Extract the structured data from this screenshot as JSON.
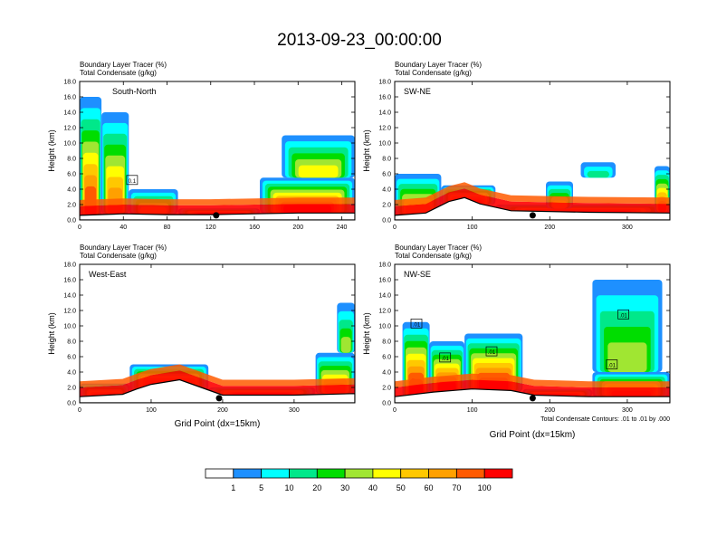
{
  "page_title": "2013-09-23_00:00:00",
  "chart_data": [
    {
      "type": "heatmap",
      "panel_label": "South-North",
      "title_lines": [
        "Boundary Layer Tracer   (%)",
        "Total Condensate   (g/kg)"
      ],
      "ylabel": "Height (km)",
      "xlabel": "",
      "footnote": "",
      "xlim": [
        0,
        252
      ],
      "ylim": [
        0,
        18
      ],
      "xticks": [
        0,
        40,
        80,
        120,
        160,
        200,
        240
      ],
      "yticks": [
        0.0,
        2.0,
        4.0,
        6.0,
        8.0,
        10.0,
        12.0,
        14.0,
        16.0,
        18.0
      ],
      "terrain": [
        [
          0,
          0.6
        ],
        [
          40,
          0.8
        ],
        [
          80,
          0.7
        ],
        [
          120,
          0.7
        ],
        [
          160,
          0.8
        ],
        [
          200,
          0.9
        ],
        [
          252,
          0.9
        ]
      ],
      "location_marker_x": 125,
      "tracer_regions": [
        {
          "x": [
            0,
            20
          ],
          "bottom": 0.6,
          "top": 16.0,
          "peak": 70
        },
        {
          "x": [
            20,
            45
          ],
          "bottom": 0.8,
          "top": 14.0,
          "peak": 60
        },
        {
          "x": [
            45,
            90
          ],
          "bottom": 0.8,
          "top": 4.0,
          "peak": 40
        },
        {
          "x": [
            90,
            165
          ],
          "bottom": 0.7,
          "top": 1.5,
          "peak": 100
        },
        {
          "x": [
            165,
            252
          ],
          "bottom": 0.9,
          "top": 5.5,
          "peak": 100
        },
        {
          "x": [
            185,
            252
          ],
          "bottom": 5.5,
          "top": 11.0,
          "peak": 40
        }
      ],
      "condensate_contour_labels": [
        {
          "x": 48,
          "y": 5.2,
          "text": "0.1"
        }
      ]
    },
    {
      "type": "heatmap",
      "panel_label": "SW-NE",
      "title_lines": [
        "Boundary Layer Tracer   (%)",
        "Total Condensate   (g/kg)"
      ],
      "ylabel": "Height (km)",
      "xlabel": "",
      "footnote": "",
      "xlim": [
        0,
        355
      ],
      "ylim": [
        0,
        18
      ],
      "xticks": [
        0,
        100,
        200,
        300
      ],
      "yticks": [
        0.0,
        2.0,
        4.0,
        6.0,
        8.0,
        10.0,
        12.0,
        14.0,
        16.0,
        18.0
      ],
      "terrain": [
        [
          0,
          0.6
        ],
        [
          40,
          0.9
        ],
        [
          70,
          2.4
        ],
        [
          90,
          2.9
        ],
        [
          110,
          2.1
        ],
        [
          150,
          1.2
        ],
        [
          250,
          1.0
        ],
        [
          355,
          0.9
        ]
      ],
      "location_marker_x": 178,
      "tracer_regions": [
        {
          "x": [
            0,
            60
          ],
          "bottom": 0.6,
          "top": 6.0,
          "peak": 50
        },
        {
          "x": [
            60,
            130
          ],
          "bottom": 2.0,
          "top": 4.5,
          "peak": 70
        },
        {
          "x": [
            130,
            355
          ],
          "bottom": 0.9,
          "top": 2.0,
          "peak": 100
        },
        {
          "x": [
            195,
            230
          ],
          "bottom": 1.5,
          "top": 5.0,
          "peak": 40
        },
        {
          "x": [
            335,
            355
          ],
          "bottom": 1.0,
          "top": 7.0,
          "peak": 70
        },
        {
          "x": [
            240,
            285
          ],
          "bottom": 5.5,
          "top": 7.5,
          "peak": 10
        }
      ],
      "condensate_contour_labels": []
    },
    {
      "type": "heatmap",
      "panel_label": "West-East",
      "title_lines": [
        "Boundary Layer Tracer   (%)",
        "Total Condensate   (g/kg)"
      ],
      "ylabel": "Height (km)",
      "xlabel": "Grid Point (dx=15km)",
      "footnote": "",
      "xlim": [
        0,
        385
      ],
      "ylim": [
        0,
        18
      ],
      "xticks": [
        0,
        100,
        200,
        300
      ],
      "yticks": [
        0.0,
        2.0,
        4.0,
        6.0,
        8.0,
        10.0,
        12.0,
        14.0,
        16.0,
        18.0
      ],
      "terrain": [
        [
          0,
          0.8
        ],
        [
          60,
          1.1
        ],
        [
          80,
          1.8
        ],
        [
          100,
          2.4
        ],
        [
          140,
          3.0
        ],
        [
          170,
          2.0
        ],
        [
          200,
          1.0
        ],
        [
          300,
          1.0
        ],
        [
          385,
          1.2
        ]
      ],
      "location_marker_x": 195,
      "tracer_regions": [
        {
          "x": [
            0,
            70
          ],
          "bottom": 0.8,
          "top": 2.5,
          "peak": 60
        },
        {
          "x": [
            70,
            180
          ],
          "bottom": 1.5,
          "top": 5.0,
          "peak": 100
        },
        {
          "x": [
            180,
            330
          ],
          "bottom": 1.0,
          "top": 2.0,
          "peak": 100
        },
        {
          "x": [
            330,
            385
          ],
          "bottom": 1.2,
          "top": 6.5,
          "peak": 60
        },
        {
          "x": [
            360,
            385
          ],
          "bottom": 6.5,
          "top": 13.0,
          "peak": 30
        }
      ],
      "condensate_contour_labels": []
    },
    {
      "type": "heatmap",
      "panel_label": "NW-SE",
      "title_lines": [
        "Boundary Layer Tracer   (%)",
        "Total Condensate   (g/kg)"
      ],
      "ylabel": "Height (km)",
      "xlabel": "Grid Point (dx=15km)",
      "footnote": "Total Condensate Contours: .01 to .01 by .000",
      "xlim": [
        0,
        355
      ],
      "ylim": [
        0,
        18
      ],
      "xticks": [
        0,
        100,
        200,
        300
      ],
      "yticks": [
        0.0,
        2.0,
        4.0,
        6.0,
        8.0,
        10.0,
        12.0,
        14.0,
        16.0,
        18.0
      ],
      "terrain": [
        [
          0,
          0.8
        ],
        [
          50,
          1.4
        ],
        [
          100,
          1.8
        ],
        [
          150,
          1.6
        ],
        [
          180,
          1.0
        ],
        [
          250,
          0.8
        ],
        [
          355,
          0.8
        ]
      ],
      "location_marker_x": 178,
      "tracer_regions": [
        {
          "x": [
            10,
            45
          ],
          "bottom": 0.8,
          "top": 10.5,
          "peak": 100
        },
        {
          "x": [
            45,
            90
          ],
          "bottom": 1.2,
          "top": 8.0,
          "peak": 100
        },
        {
          "x": [
            90,
            165
          ],
          "bottom": 1.5,
          "top": 9.0,
          "peak": 100
        },
        {
          "x": [
            165,
            255
          ],
          "bottom": 0.8,
          "top": 1.8,
          "peak": 100
        },
        {
          "x": [
            255,
            355
          ],
          "bottom": 0.8,
          "top": 4.0,
          "peak": 70
        },
        {
          "x": [
            255,
            345
          ],
          "bottom": 4.0,
          "top": 16.0,
          "peak": 30
        }
      ],
      "condensate_contour_labels": [
        {
          "x": 28,
          "y": 10.3,
          "text": ".01"
        },
        {
          "x": 65,
          "y": 5.9,
          "text": ".01"
        },
        {
          "x": 125,
          "y": 6.7,
          "text": ".01"
        },
        {
          "x": 295,
          "y": 11.5,
          "text": ".01"
        },
        {
          "x": 280,
          "y": 5.0,
          "text": ".01"
        }
      ]
    }
  ],
  "colorbar": {
    "levels": [
      "1",
      "5",
      "10",
      "20",
      "30",
      "40",
      "50",
      "60",
      "70",
      "100"
    ],
    "colors": [
      "#ffffff",
      "#1e90ff",
      "#00ffff",
      "#00e88a",
      "#00dd00",
      "#a0e632",
      "#ffff00",
      "#ffc800",
      "#ffa000",
      "#ff5a00",
      "#ff0000"
    ]
  }
}
